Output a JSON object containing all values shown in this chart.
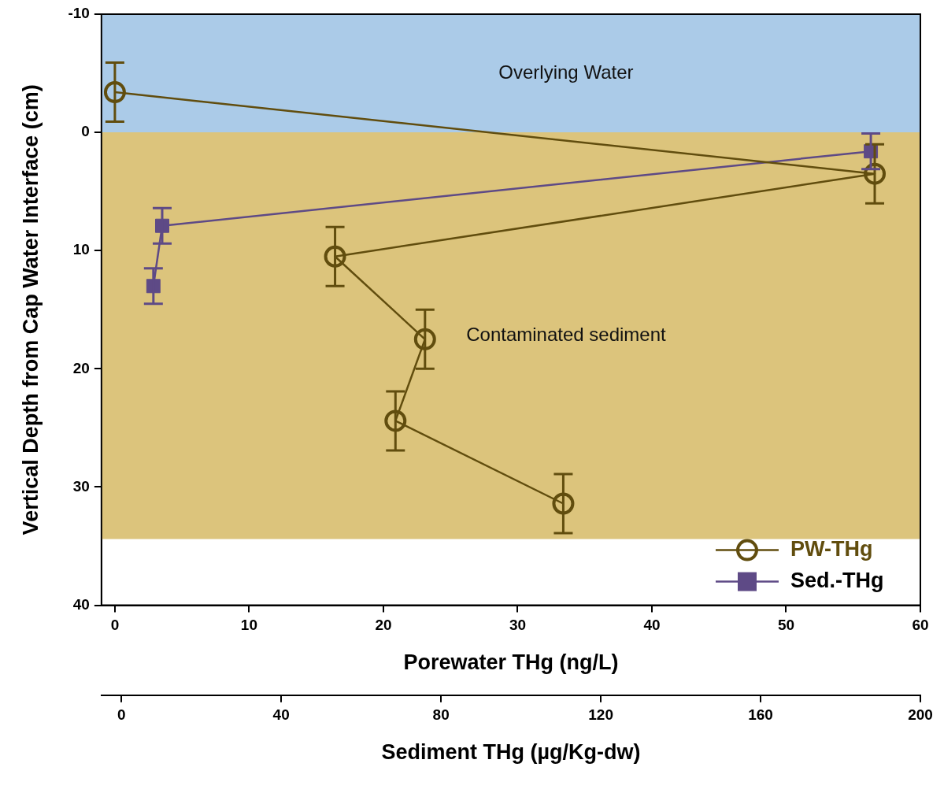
{
  "chart_data": {
    "type": "line",
    "xlabel": "Porewater THg (ng/L)",
    "x2label": "Sediment THg (µg/Kg-dw)",
    "ylabel": "Vertical Depth from Cap Water Interface (cm)",
    "xlim": [
      -1,
      60
    ],
    "xticks": [
      0,
      10,
      20,
      30,
      40,
      50,
      60
    ],
    "x2lim": [
      -5,
      200
    ],
    "x2ticks": [
      0,
      40,
      80,
      120,
      160,
      200
    ],
    "ylim": [
      40,
      -10
    ],
    "yticks": [
      -10,
      0,
      10,
      20,
      30,
      40
    ],
    "bands": [
      {
        "axis": "y",
        "from": -10,
        "to": 0,
        "label": "Overlying Water",
        "color": "#abcbe8"
      },
      {
        "axis": "y",
        "from": 0,
        "to": 34.4,
        "label": "Contaminated sediment",
        "color": "#dcc47c"
      }
    ],
    "series": [
      {
        "name": "PW-THg",
        "marker": "circle",
        "color": "#614d0e",
        "x": [
          0,
          56.6,
          16.4,
          23.1,
          20.9,
          33.4
        ],
        "values": [
          -3.4,
          3.5,
          10.5,
          17.5,
          24.4,
          31.4
        ],
        "errors": [
          2.5,
          2.5,
          2.5,
          2.5,
          2.5,
          2.5
        ]
      },
      {
        "name": "Sed.-THg",
        "marker": "square",
        "axis": "x2",
        "color": "#5e4a86",
        "x": [
          187.6,
          10.2,
          8.0
        ],
        "values": [
          1.6,
          7.9,
          13.0
        ],
        "errors": [
          1.5,
          1.5,
          1.5
        ]
      }
    ],
    "grid": false,
    "legend": "bottom right"
  }
}
